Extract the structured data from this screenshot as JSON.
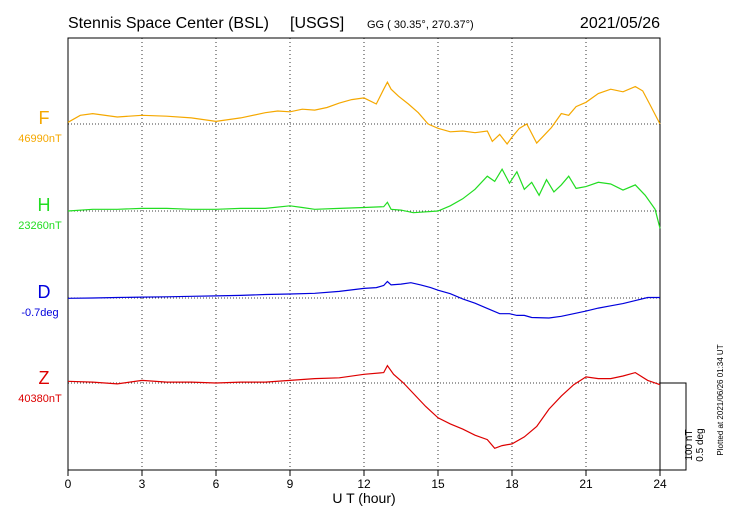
{
  "header": {
    "station": "Stennis Space Center (BSL)",
    "network": "[USGS]",
    "coords": "GG ( 30.35°, 270.37°)",
    "date": "2021/05/26"
  },
  "plotted_note": "Plotted at 2021/06/26 01:34 UT",
  "scale_bar": {
    "line1": "100 nT",
    "line2": "0.5 deg"
  },
  "colors": {
    "F": "#f5a800",
    "H": "#22dd22",
    "D": "#0000dd",
    "Z": "#dd0000",
    "grid": "#000000"
  },
  "chart_data": {
    "type": "line",
    "xlabel": "U T (hour)",
    "xlim": [
      0,
      24
    ],
    "xticks": [
      0,
      3,
      6,
      9,
      12,
      15,
      18,
      21,
      24
    ],
    "xtick_labels": [
      "0",
      "3",
      "6",
      "9",
      "12",
      "15",
      "18",
      "21",
      "24"
    ],
    "grid": true,
    "scale": {
      "nT_per_bar": 100,
      "deg_per_bar": 0.5
    },
    "series": [
      {
        "name": "F",
        "baseline_label": "46990nT",
        "unit": "nT",
        "baseline": 46990,
        "x": [
          0,
          0.5,
          1,
          2,
          3,
          4,
          5,
          6,
          7,
          8,
          8.5,
          9,
          9.5,
          10,
          10.5,
          11,
          11.5,
          12,
          12.5,
          12.8,
          12.95,
          13.1,
          13.4,
          13.8,
          14.2,
          14.6,
          15,
          15.5,
          16,
          16.5,
          17,
          17.2,
          17.5,
          17.8,
          18,
          18.3,
          18.6,
          19,
          19.3,
          19.6,
          20,
          20.3,
          20.6,
          21,
          21.5,
          22,
          22.5,
          23,
          23.3,
          23.6,
          24
        ],
        "values": [
          46992,
          47000,
          47002,
          46998,
          47000,
          46999,
          46997,
          46993,
          46997,
          47003,
          47005,
          47004,
          47007,
          47006,
          47009,
          47014,
          47018,
          47020,
          47013,
          47030,
          47038,
          47030,
          47022,
          47013,
          47003,
          46990,
          46985,
          46981,
          46982,
          46980,
          46982,
          46970,
          46978,
          46967,
          46975,
          46985,
          46990,
          46968,
          46977,
          46986,
          47002,
          47000,
          47010,
          47015,
          47025,
          47030,
          47027,
          47033,
          47028,
          47012,
          46990
        ]
      },
      {
        "name": "H",
        "baseline_label": "23260nT",
        "unit": "nT",
        "baseline": 23260,
        "x": [
          0,
          1,
          2,
          3,
          4,
          5,
          6,
          7,
          8,
          9,
          9.5,
          10,
          11,
          12,
          12.8,
          12.95,
          13.1,
          13.5,
          14,
          15,
          15.5,
          16,
          16.5,
          17,
          17.3,
          17.6,
          17.9,
          18.2,
          18.5,
          18.8,
          19.1,
          19.4,
          19.7,
          20,
          20.3,
          20.6,
          21,
          21.5,
          22,
          22.5,
          23,
          23.4,
          23.8,
          24
        ],
        "values": [
          23260,
          23262,
          23262,
          23263,
          23263,
          23262,
          23262,
          23263,
          23263,
          23266,
          23264,
          23262,
          23263,
          23264,
          23265,
          23270,
          23262,
          23261,
          23258,
          23260,
          23266,
          23274,
          23285,
          23300,
          23294,
          23308,
          23292,
          23305,
          23285,
          23293,
          23278,
          23296,
          23282,
          23290,
          23300,
          23286,
          23288,
          23293,
          23291,
          23284,
          23290,
          23278,
          23262,
          23240
        ]
      },
      {
        "name": "D",
        "baseline_label": "-0.7deg",
        "unit": "deg",
        "baseline": -0.7,
        "x": [
          0,
          1,
          2,
          3,
          4,
          5,
          6,
          7,
          8,
          9,
          10,
          11,
          12,
          12.5,
          12.8,
          12.95,
          13.1,
          13.5,
          13.9,
          14.3,
          14.7,
          15,
          15.5,
          16,
          16.5,
          17,
          17.5,
          17.9,
          18.2,
          18.5,
          18.8,
          19.5,
          20,
          20.5,
          21,
          21.5,
          22,
          22.5,
          23,
          23.5,
          24
        ],
        "values": [
          -0.702,
          -0.7,
          -0.697,
          -0.695,
          -0.693,
          -0.69,
          -0.688,
          -0.685,
          -0.68,
          -0.677,
          -0.673,
          -0.662,
          -0.645,
          -0.64,
          -0.628,
          -0.605,
          -0.625,
          -0.62,
          -0.612,
          -0.625,
          -0.64,
          -0.655,
          -0.675,
          -0.705,
          -0.73,
          -0.76,
          -0.79,
          -0.79,
          -0.8,
          -0.8,
          -0.812,
          -0.815,
          -0.805,
          -0.79,
          -0.775,
          -0.758,
          -0.745,
          -0.732,
          -0.715,
          -0.697,
          -0.697
        ]
      },
      {
        "name": "Z",
        "baseline_label": "40380nT",
        "unit": "nT",
        "baseline": 40380,
        "x": [
          0,
          1,
          2,
          3,
          4,
          5,
          6,
          7,
          8,
          9,
          10,
          11,
          12,
          12.8,
          12.95,
          13.2,
          13.6,
          14,
          14.5,
          15,
          15.5,
          16,
          16.5,
          17,
          17.3,
          17.6,
          18,
          18.5,
          19,
          19.5,
          20,
          20.5,
          21,
          21.5,
          22,
          22.5,
          23,
          23.5,
          24
        ],
        "values": [
          40382,
          40381,
          40379,
          40383,
          40381,
          40381,
          40380,
          40381,
          40381,
          40383,
          40385,
          40386,
          40390,
          40392,
          40400,
          40390,
          40380,
          40368,
          40353,
          40340,
          40333,
          40327,
          40320,
          40315,
          40305,
          40308,
          40310,
          40318,
          40330,
          40350,
          40365,
          40378,
          40387,
          40385,
          40385,
          40388,
          40392,
          40383,
          40378
        ]
      }
    ]
  }
}
